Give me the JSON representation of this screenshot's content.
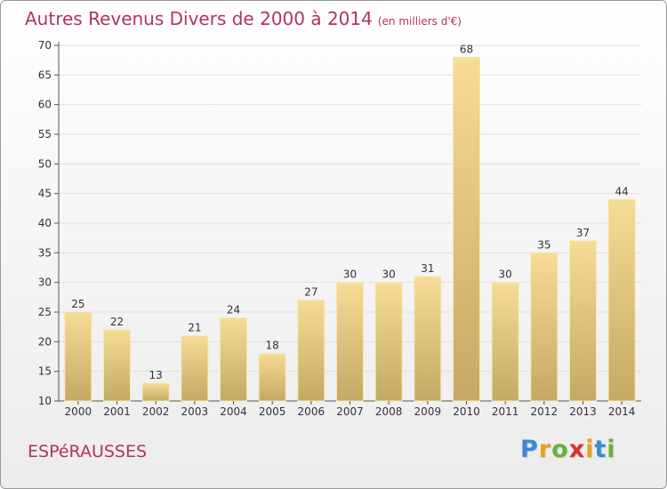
{
  "header": {
    "title": "Autres Revenus Divers de 2000 à 2014",
    "subtitle": "(en milliers d'€)"
  },
  "commune": "ESPéRAUSSES",
  "logo": {
    "letters": [
      "P",
      "r",
      "o",
      "x",
      "i",
      "t",
      "i"
    ],
    "colors": [
      "#3a8ad0",
      "#e8a11a",
      "#6ab13b",
      "#d8322e",
      "#e8a11a",
      "#3a8ad0",
      "#6ab13b"
    ]
  },
  "colors": {
    "bar_top": "#f6dc94",
    "bar_bottom": "#c4a964",
    "title": "#b0345c",
    "grid": "#e0e0e0"
  },
  "chart_data": {
    "type": "bar",
    "title": "Autres Revenus Divers de 2000 à 2014",
    "subtitle": "(en milliers d'€)",
    "categories": [
      "2000",
      "2001",
      "2002",
      "2003",
      "2004",
      "2005",
      "2006",
      "2007",
      "2008",
      "2009",
      "2010",
      "2011",
      "2012",
      "2013",
      "2014"
    ],
    "values": [
      25,
      22,
      13,
      21,
      24,
      18,
      27,
      30,
      30,
      31,
      68,
      30,
      35,
      37,
      44
    ],
    "ylim": [
      10,
      70
    ],
    "yticks": [
      10,
      15,
      20,
      25,
      30,
      35,
      40,
      45,
      50,
      55,
      60,
      65,
      70
    ],
    "grid": true,
    "xlabel": "",
    "ylabel": ""
  }
}
